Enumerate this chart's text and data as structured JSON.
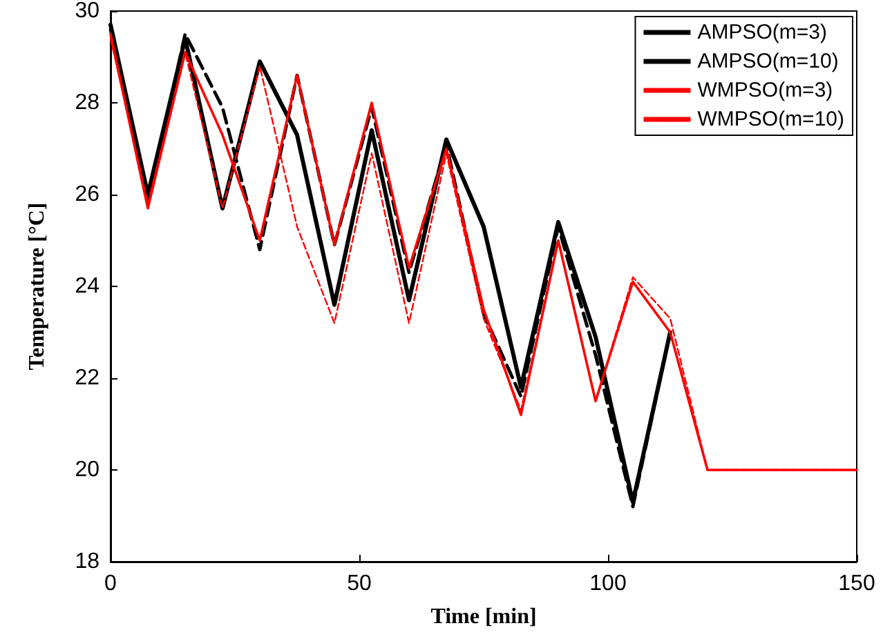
{
  "chart_data": {
    "type": "line",
    "xlabel": "Time [min]",
    "ylabel": "Temperature [°C]",
    "x": [
      0,
      7.5,
      15,
      22.5,
      30,
      37.5,
      45,
      52.5,
      60,
      67.5,
      75,
      82.5,
      90,
      97.5,
      105,
      112.5,
      120,
      150
    ],
    "series": [
      {
        "name": "AMPSO(m=3)",
        "color": "#000000",
        "line_style": "solid",
        "values": [
          29.7,
          26.0,
          29.4,
          25.7,
          28.9,
          27.3,
          23.6,
          27.4,
          23.7,
          27.2,
          25.3,
          21.8,
          25.4,
          22.9,
          19.3,
          23.0,
          null,
          null
        ]
      },
      {
        "name": "AMPSO(m=10)",
        "color": "#000000",
        "line_style": "dashed",
        "values": [
          29.6,
          25.8,
          29.5,
          27.9,
          24.8,
          28.6,
          24.9,
          27.9,
          24.3,
          27.1,
          23.4,
          21.6,
          25.3,
          22.5,
          19.2,
          23.0,
          null,
          null
        ]
      },
      {
        "name": "WMPSO(m=3)",
        "color": "#ff0000",
        "line_style": "solid",
        "values": [
          29.5,
          25.7,
          29.1,
          27.3,
          25.0,
          28.6,
          24.9,
          28.0,
          24.4,
          27.0,
          23.5,
          21.2,
          25.0,
          21.5,
          24.1,
          23.0,
          20.0,
          20.0
        ]
      },
      {
        "name": "WMPSO(m=10)",
        "color": "#ff0000",
        "line_style": "dashed",
        "values": [
          29.4,
          25.8,
          29.1,
          25.7,
          28.8,
          25.3,
          23.2,
          26.9,
          23.2,
          26.9,
          23.3,
          21.3,
          25.0,
          21.5,
          24.2,
          23.3,
          20.0,
          20.0
        ]
      }
    ],
    "xlim": [
      0,
      150
    ],
    "xticks": [
      0,
      50,
      100,
      150
    ],
    "ylim": [
      18,
      30
    ],
    "yticks": [
      18,
      20,
      22,
      24,
      26,
      28,
      30
    ],
    "legend": "top right",
    "grid": false,
    "marker": "none"
  }
}
